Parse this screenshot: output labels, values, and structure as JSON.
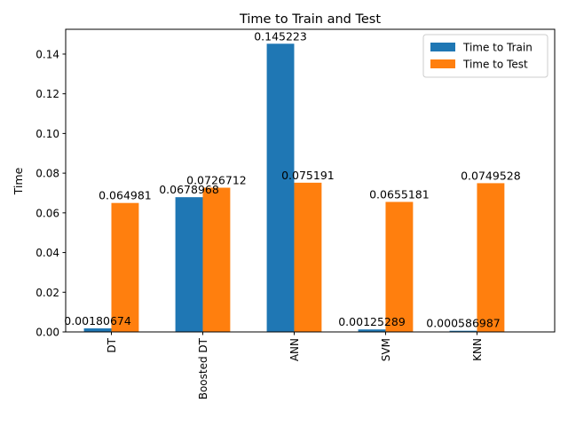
{
  "chart_data": {
    "type": "bar",
    "title": "Time to Train and Test",
    "xlabel": "",
    "ylabel": "Time",
    "categories": [
      "DT",
      "Boosted DT",
      "ANN",
      "SVM",
      "KNN"
    ],
    "series": [
      {
        "name": "Time to Train",
        "color": "#1f77b4",
        "values": [
          0.00180674,
          0.0678968,
          0.145223,
          0.00125289,
          0.000586987
        ],
        "labels": [
          "0.00180674",
          "0.0678968",
          "0.145223",
          "0.00125289",
          "0.000586987"
        ]
      },
      {
        "name": "Time to Test",
        "color": "#ff7f0e",
        "values": [
          0.064981,
          0.0726712,
          0.075191,
          0.0655181,
          0.0749528
        ],
        "labels": [
          "0.064981",
          "0.0726712",
          "0.075191",
          "0.0655181",
          "0.0749528"
        ]
      }
    ],
    "ylim": [
      0,
      0.1525
    ],
    "yticks": [
      0.0,
      0.02,
      0.04,
      0.06,
      0.08,
      0.1,
      0.12,
      0.14
    ],
    "ytick_labels": [
      "0.00",
      "0.02",
      "0.04",
      "0.06",
      "0.08",
      "0.10",
      "0.12",
      "0.14"
    ],
    "xtick_rotation": 90,
    "legend_position": "top-right",
    "grid": false
  }
}
